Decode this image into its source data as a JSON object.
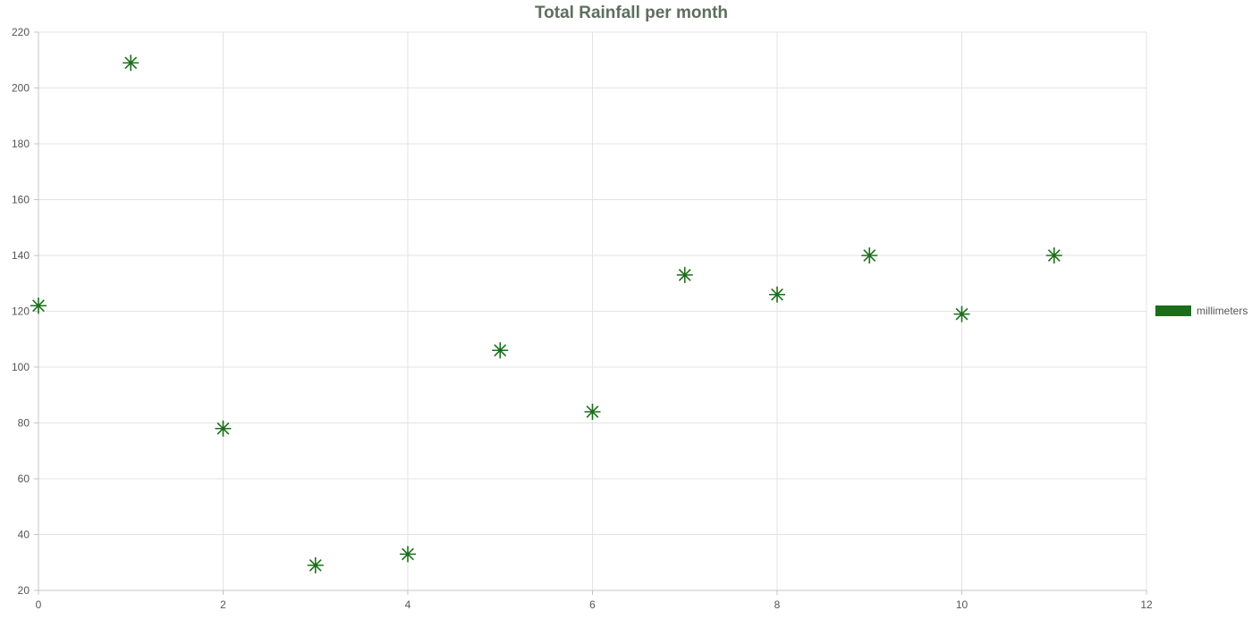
{
  "chart_data": {
    "type": "scatter",
    "title": "Total Rainfall per month",
    "xlabel": "",
    "ylabel": "",
    "xlim": [
      0,
      12
    ],
    "ylim": [
      20,
      220
    ],
    "x_ticks": [
      "0",
      "2",
      "4",
      "6",
      "8",
      "10",
      "12"
    ],
    "y_ticks": [
      "20",
      "40",
      "60",
      "80",
      "100",
      "120",
      "140",
      "160",
      "180",
      "200",
      "220"
    ],
    "grid": true,
    "legend_position": "right",
    "point_style": "star",
    "series": [
      {
        "name": "millimeters",
        "color": "#1a6e1a",
        "points": [
          {
            "x": 0,
            "y": 122
          },
          {
            "x": 1,
            "y": 209
          },
          {
            "x": 2,
            "y": 78
          },
          {
            "x": 3,
            "y": 29
          },
          {
            "x": 4,
            "y": 33
          },
          {
            "x": 5,
            "y": 106
          },
          {
            "x": 6,
            "y": 84
          },
          {
            "x": 7,
            "y": 133
          },
          {
            "x": 8,
            "y": 126
          },
          {
            "x": 9,
            "y": 140
          },
          {
            "x": 10,
            "y": 119
          },
          {
            "x": 11,
            "y": 140
          }
        ]
      }
    ],
    "title_color": "#5e6e5e",
    "grid_color": "#e3e3e3",
    "axis_color": "#c4c4c4"
  }
}
